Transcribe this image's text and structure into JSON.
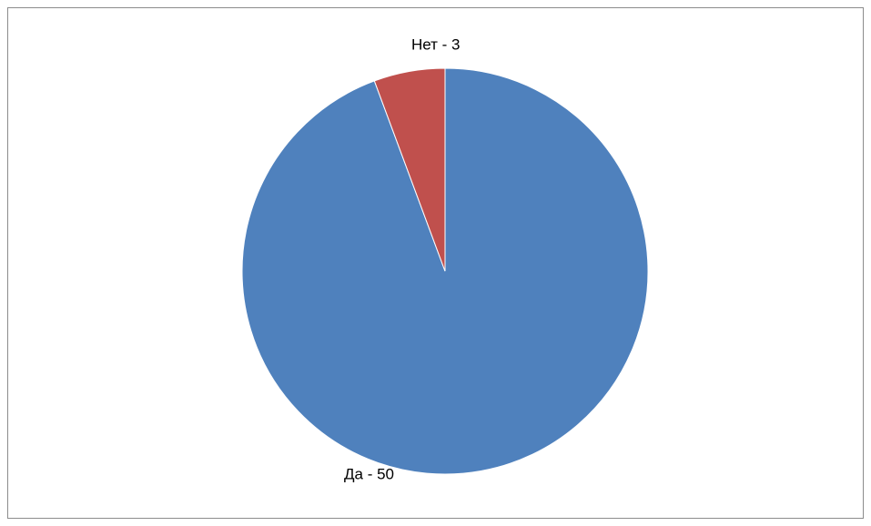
{
  "chart_data": {
    "type": "pie",
    "values": [
      50,
      3
    ],
    "value_labels": [
      "Да - 50",
      "Нет - 3"
    ],
    "colors": [
      "#4f81bd",
      "#c0504d"
    ],
    "start_angle": 0,
    "direction": "clockwise"
  }
}
